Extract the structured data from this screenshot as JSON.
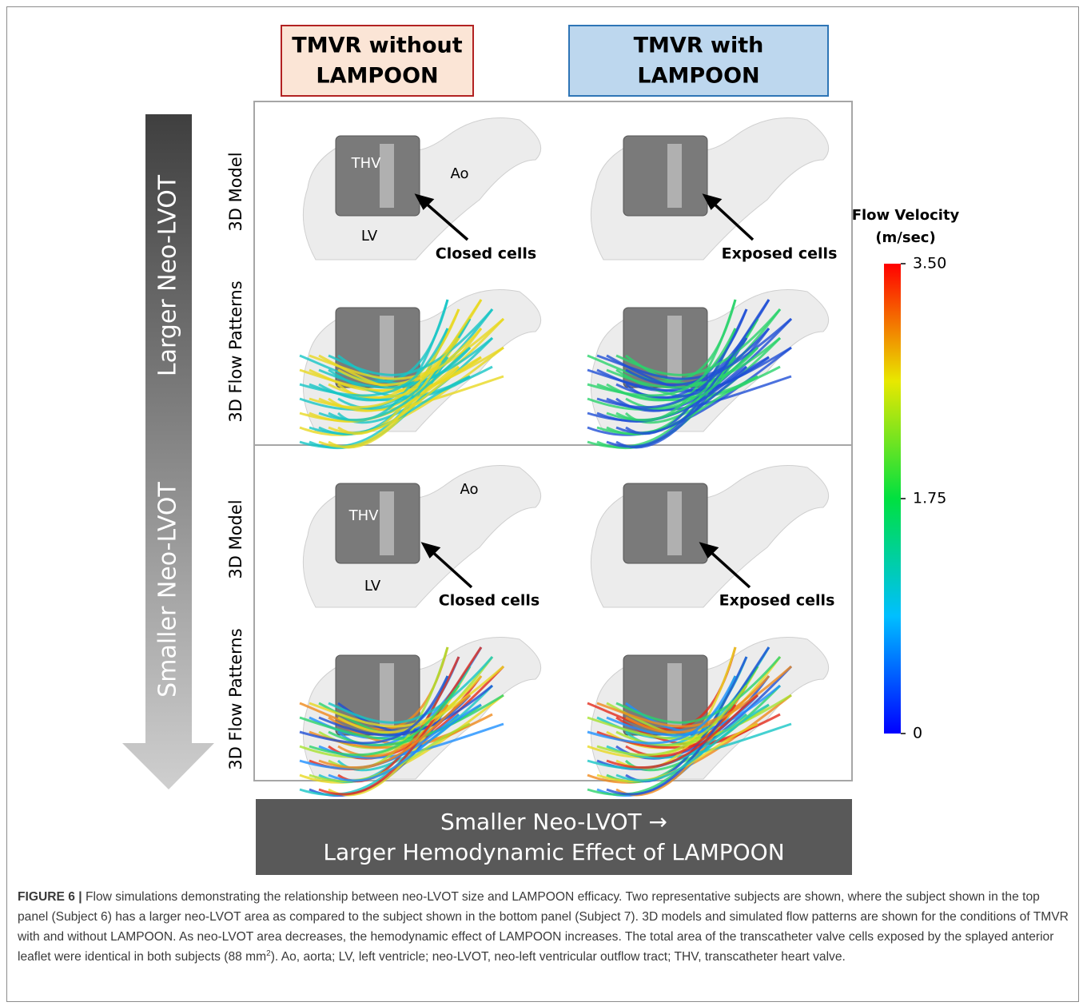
{
  "figure": {
    "columns": [
      {
        "lines": [
          "TMVR without",
          "LAMPOON"
        ]
      },
      {
        "lines": [
          "TMVR with",
          "LAMPOON"
        ]
      }
    ],
    "arrow_labels": [
      "Larger Neo-LVOT",
      "Smaller Neo-LVOT"
    ],
    "row_labels": [
      "3D Model",
      "3D Flow Patterns",
      "3D Model",
      "3D Flow Patterns"
    ],
    "annotations": {
      "thv": "THV",
      "ao": "Ao",
      "lv": "LV",
      "closed": "Closed cells",
      "exposed": "Exposed cells"
    },
    "colorbar": {
      "title": [
        "Flow Velocity",
        "(m/sec)"
      ],
      "range": [
        0,
        3.5
      ],
      "ticks": [
        {
          "value": 3.5,
          "label": "3.50"
        },
        {
          "value": 1.75,
          "label": "1.75"
        },
        0
      ]
    },
    "banner": [
      "Smaller Neo-LVOT →",
      "Larger Hemodynamic Effect of LAMPOON"
    ]
  },
  "caption": {
    "label": "FIGURE 6 |",
    "text_before": " Flow simulations demonstrating the relationship between neo-LVOT size and LAMPOON efficacy. Two representative subjects are shown, where the subject shown in the top panel (Subject 6) has a larger neo-LVOT area as compared to the subject shown in the bottom panel (Subject 7). 3D models and simulated flow patterns are shown for the conditions of TMVR with and without LAMPOON. As neo-LVOT area decreases, the hemodynamic effect of LAMPOON increases. The total area of the transcatheter valve cells exposed by the splayed anterior leaflet were identical in both subjects (88 mm",
    "superscript": "2",
    "text_after": "). Ao, aorta; LV, left ventricle; neo-LVOT, neo-left ventricular outflow tract; THV, transcatheter heart valve."
  }
}
